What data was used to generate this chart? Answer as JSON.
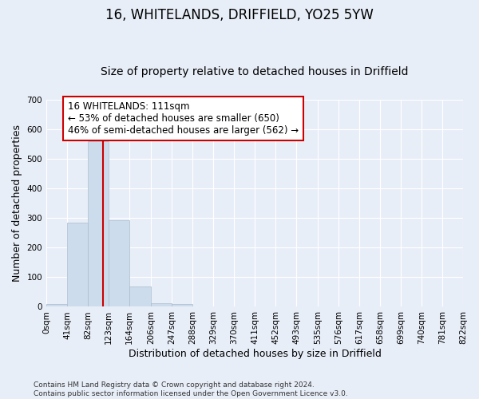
{
  "title": "16, WHITELANDS, DRIFFIELD, YO25 5YW",
  "subtitle": "Size of property relative to detached houses in Driffield",
  "xlabel": "Distribution of detached houses by size in Driffield",
  "ylabel": "Number of detached properties",
  "bar_edges": [
    0,
    41,
    82,
    123,
    164,
    206,
    247,
    288,
    329,
    370,
    411,
    452,
    493,
    535,
    576,
    617,
    658,
    699,
    740,
    781,
    822
  ],
  "bar_heights": [
    8,
    284,
    560,
    293,
    68,
    13,
    9,
    0,
    0,
    0,
    0,
    0,
    0,
    0,
    0,
    0,
    0,
    0,
    0,
    0
  ],
  "bar_color": "#ccdcec",
  "bar_edge_color": "#aabbcc",
  "vline_x": 111,
  "vline_color": "#cc0000",
  "annotation_text": "16 WHITELANDS: 111sqm\n← 53% of detached houses are smaller (650)\n46% of semi-detached houses are larger (562) →",
  "annotation_box_color": "#ffffff",
  "annotation_box_edgecolor": "#cc0000",
  "ylim": [
    0,
    700
  ],
  "yticks": [
    0,
    100,
    200,
    300,
    400,
    500,
    600,
    700
  ],
  "tick_labels": [
    "0sqm",
    "41sqm",
    "82sqm",
    "123sqm",
    "164sqm",
    "206sqm",
    "247sqm",
    "288sqm",
    "329sqm",
    "370sqm",
    "411sqm",
    "452sqm",
    "493sqm",
    "535sqm",
    "576sqm",
    "617sqm",
    "658sqm",
    "699sqm",
    "740sqm",
    "781sqm",
    "822sqm"
  ],
  "footnote": "Contains HM Land Registry data © Crown copyright and database right 2024.\nContains public sector information licensed under the Open Government Licence v3.0.",
  "bg_color": "#e8eef8",
  "grid_color": "#ffffff",
  "title_fontsize": 12,
  "subtitle_fontsize": 10,
  "axis_fontsize": 9,
  "tick_fontsize": 7.5,
  "footnote_fontsize": 6.5
}
